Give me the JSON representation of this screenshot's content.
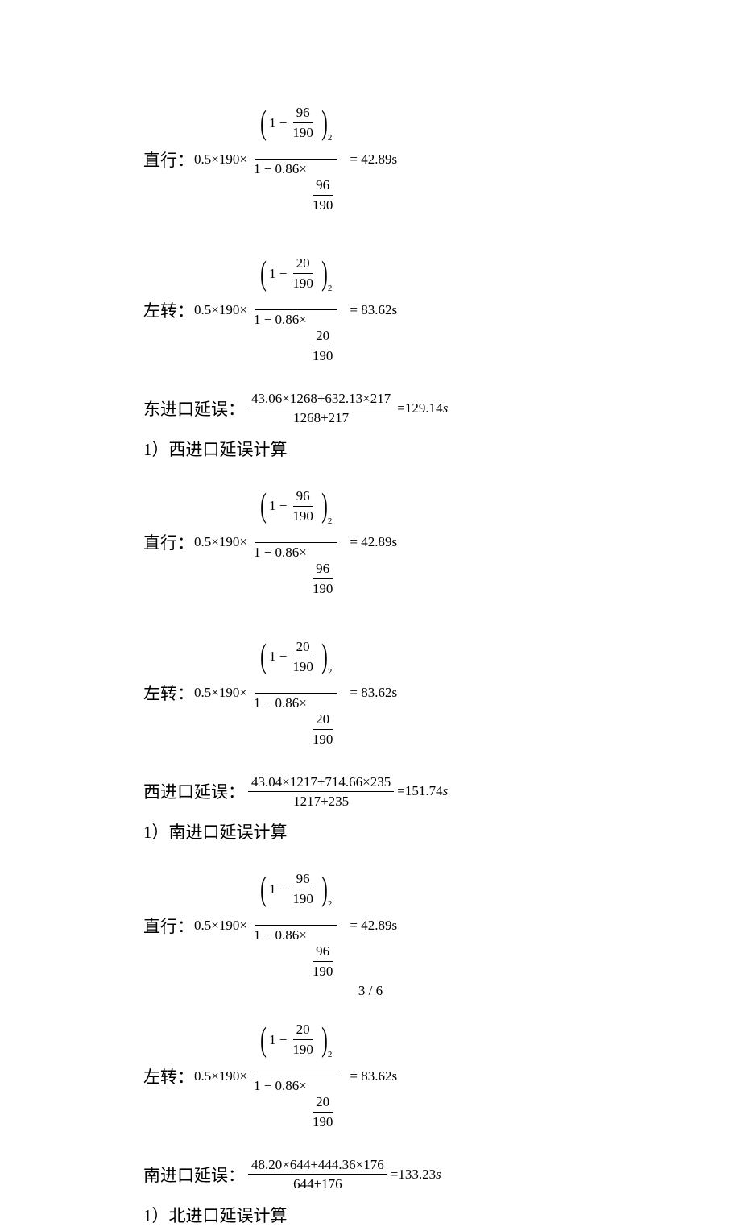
{
  "page": {
    "footer": "3 / 6"
  },
  "labels": {
    "straight": "直行：",
    "left": "左转：",
    "east_delay": "东进口延误：",
    "west_delay": "西进口延误：",
    "south_delay": "南进口延误："
  },
  "headings": {
    "west": "1）西进口延误计算",
    "south": "1）南进口延误计算",
    "north": "1）北进口延误计算"
  },
  "formula_big": {
    "prefix": "0.5×190×",
    "num_inner_1": "1 −",
    "den_prefix": "1 − 0.86×",
    "exp": "2"
  },
  "straight_vals": {
    "a": "96",
    "b": "190",
    "result": "= 42.89s"
  },
  "left_vals": {
    "a": "20",
    "b": "190",
    "result": "= 83.62s"
  },
  "east": {
    "num": "43.06×1268+632.13×217",
    "den": "1268+217",
    "res": "=129.14",
    "unit": "s"
  },
  "west": {
    "num": "43.04×1217+714.66×235",
    "den": "1217+235",
    "res": "=151.74",
    "unit": "s"
  },
  "south": {
    "num": "48.20×644+444.36×176",
    "den": "644+176",
    "res": "=133.23",
    "unit": "s"
  }
}
